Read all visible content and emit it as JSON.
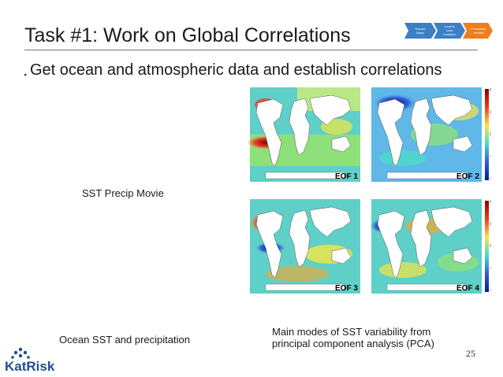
{
  "slide": {
    "title": "Task #1: Work on Global Correlations",
    "bullet": "Get ocean and atmospheric data and establish correlations",
    "page_number": "25"
  },
  "nav_chevrons": [
    {
      "label_line1": "Hazard",
      "label_line2": "Maps",
      "color": "#3b7fc4"
    },
    {
      "label_line1": "Local &",
      "label_line2": "Loss",
      "label_line3": "Analytics",
      "color": "#3b7fc4"
    },
    {
      "label_line1": "Probabilistic",
      "label_line2": "Models",
      "color": "#f07d1a"
    }
  ],
  "labels": {
    "sst_precip_movie": "SST Precip Movie",
    "ocean_sst_precip": "Ocean SST and precipitation",
    "main_modes_line1": "Main modes of SST variability from",
    "main_modes_line2": "principal component analysis (PCA)"
  },
  "maps": [
    {
      "label": "EOF 1"
    },
    {
      "label": "EOF 2"
    },
    {
      "label": "EOF 3"
    },
    {
      "label": "EOF 4"
    }
  ],
  "colorbar": {
    "top_ticks": [
      "0.02",
      "0.01",
      "0",
      "-0.01",
      "-0.02"
    ],
    "bottom_ticks": [
      "0.02",
      "0.01",
      "0",
      "-0.01",
      "-0.02"
    ]
  },
  "brand": {
    "name": "KatRisk",
    "color": "#1f4e8c"
  }
}
